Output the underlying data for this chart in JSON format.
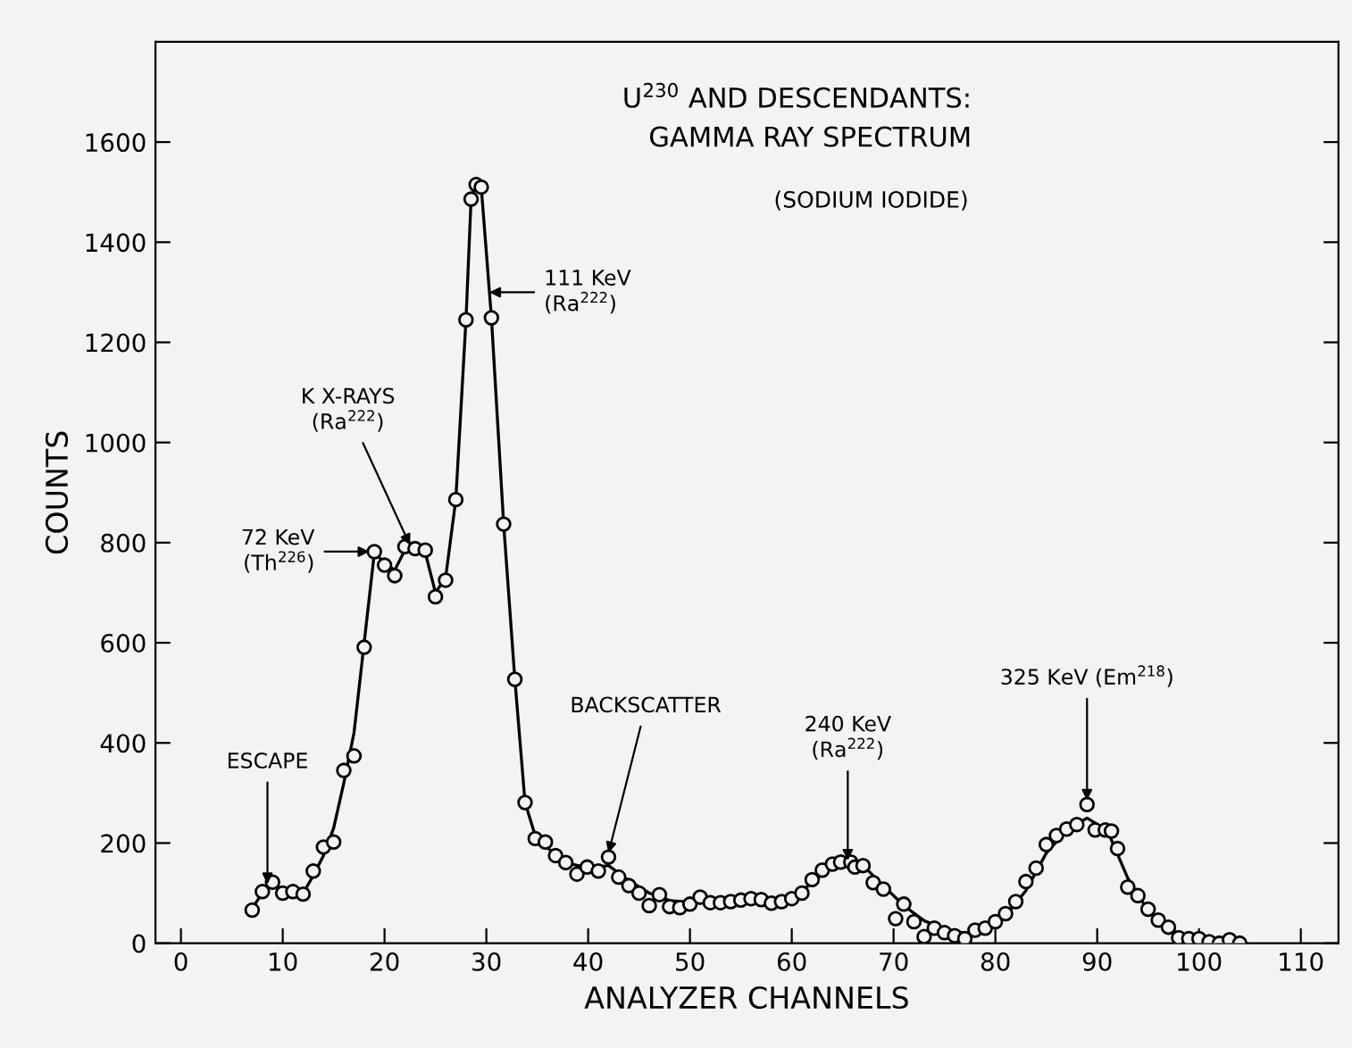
{
  "chart_data": {
    "type": "scatter",
    "title": "U$^{230}$ AND DESCENDANTS:\nGAMMA RAY SPECTRUM",
    "subtitle": "(SODIUM IODIDE)",
    "xlabel": "ANALYZER CHANNELS",
    "ylabel": "COUNTS",
    "xlim": [
      -2.5,
      113.7
    ],
    "ylim": [
      0,
      1800
    ],
    "xticks": [
      0,
      10,
      20,
      30,
      40,
      50,
      60,
      70,
      80,
      90,
      100,
      110
    ],
    "yticks": [
      0,
      200,
      400,
      600,
      800,
      1000,
      1200,
      1400,
      1600
    ],
    "grid": false,
    "legend": false,
    "series": [
      {
        "marker": "circle",
        "color": "#000000",
        "x": [
          7,
          8,
          9,
          10,
          11,
          12,
          13,
          14,
          15,
          16,
          17,
          18,
          19,
          20,
          21,
          22,
          23,
          24,
          25,
          26,
          27,
          28,
          28.5,
          29,
          29.5,
          30.5,
          31.7,
          32.8,
          33.8,
          34.8,
          35.8,
          36.8,
          37.8,
          38.9,
          39.9,
          41,
          42,
          43,
          44,
          45,
          46,
          47,
          48,
          49,
          50,
          51,
          52,
          53,
          54,
          55,
          56,
          57,
          58,
          59,
          60,
          61,
          62,
          63,
          64,
          64.8,
          65.8,
          66.2,
          67,
          68,
          69,
          70.2,
          71,
          72,
          73,
          74,
          75,
          76,
          77,
          78,
          79,
          80,
          81,
          82,
          83,
          84,
          85,
          86,
          87,
          88,
          89,
          89.8,
          90.8,
          91.4,
          92,
          93,
          94,
          95,
          96,
          97,
          98,
          99,
          100,
          101,
          102,
          103,
          104
        ],
        "values": [
          66,
          103,
          122,
          100,
          103,
          98,
          144,
          192,
          202,
          345,
          374,
          591,
          782,
          755,
          734,
          792,
          788,
          785,
          692,
          725,
          886,
          1245,
          1486,
          1515,
          1510,
          1249,
          837,
          527,
          281,
          209,
          202,
          175,
          161,
          138,
          152,
          144,
          172,
          132,
          115,
          100,
          75,
          97,
          73,
          71,
          78,
          92,
          81,
          81,
          83,
          86,
          89,
          87,
          80,
          83,
          89,
          100,
          127,
          146,
          158,
          162,
          162,
          152,
          155,
          121,
          108,
          49,
          78,
          43,
          13,
          30,
          21,
          15,
          9,
          26,
          30,
          43,
          59,
          83,
          123,
          150,
          197,
          215,
          228,
          237,
          277,
          226,
          226,
          224,
          189,
          112,
          95,
          68,
          46,
          32,
          11,
          9,
          9,
          3,
          0,
          7,
          0
        ]
      },
      {
        "type": "line",
        "marker": "none",
        "line_style": "solid",
        "color": "#000000",
        "x": [
          7,
          8,
          9,
          10,
          12,
          13,
          14,
          15,
          16,
          17,
          18,
          19,
          20,
          21,
          22,
          23,
          24,
          25,
          26,
          27,
          28,
          28.5,
          29,
          29.5,
          30.5,
          31.7,
          32.8,
          33.8,
          34.8,
          36,
          38,
          40,
          42,
          44,
          46,
          48,
          50,
          52,
          54,
          56,
          58,
          60,
          62,
          64,
          65.5,
          67,
          69,
          71,
          73,
          75,
          77,
          79,
          81,
          83,
          85,
          87,
          89,
          91,
          93,
          95,
          97,
          99,
          101,
          104
        ],
        "values": [
          70,
          100,
          118,
          105,
          100,
          135,
          175,
          230,
          320,
          420,
          600,
          780,
          760,
          745,
          785,
          790,
          780,
          700,
          730,
          886,
          1245,
          1486,
          1515,
          1510,
          1249,
          837,
          527,
          281,
          215,
          190,
          160,
          150,
          155,
          125,
          100,
          85,
          82,
          85,
          88,
          90,
          88,
          92,
          120,
          155,
          168,
          155,
          115,
          75,
          45,
          28,
          20,
          30,
          55,
          105,
          180,
          225,
          250,
          225,
          130,
          65,
          28,
          12,
          5,
          2
        ]
      }
    ],
    "annotations": [
      {
        "text": "ESCAPE",
        "x": 8.5,
        "y": 118
      },
      {
        "text": "72 KeV\n(Th$^{226}$)",
        "x": 18.5,
        "y": 782
      },
      {
        "text": "K X-RAYS\n(Ra$^{222}$)",
        "x": 22.5,
        "y": 795
      },
      {
        "text": "111 KeV\n(Ra$^{222}$)",
        "x": 30.3,
        "y": 1300
      },
      {
        "text": "BACKSCATTER",
        "x": 42,
        "y": 180
      },
      {
        "text": "240 KeV\n(Ra$^{222}$)",
        "x": 65.5,
        "y": 165
      },
      {
        "text": "325 KeV (Em$^{218}$)",
        "x": 89,
        "y": 285
      }
    ]
  }
}
